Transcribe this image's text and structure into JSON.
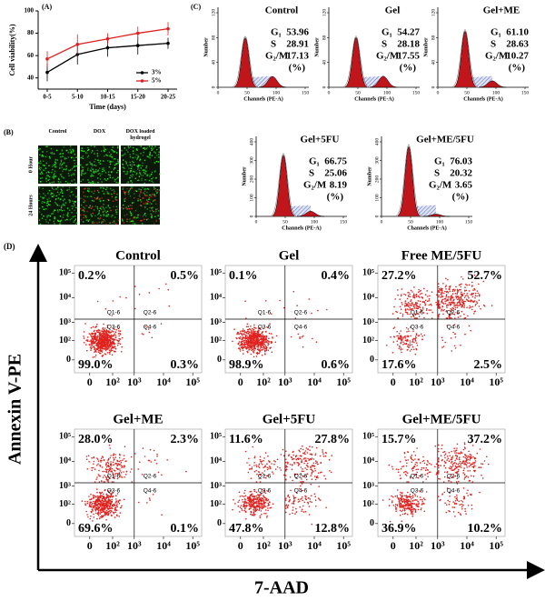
{
  "chart_data": {
    "type": "line",
    "title": "(A)",
    "x_label": "Time (days)",
    "y_label": "Cell viability(%)",
    "categories": [
      "0-5",
      "5-10",
      "10-15",
      "15-20",
      "20-25"
    ],
    "series": [
      {
        "name": "3%",
        "color": "#000000",
        "values": [
          45,
          61,
          67,
          69,
          71
        ],
        "errors": [
          8,
          9,
          8,
          8,
          5
        ]
      },
      {
        "name": "5%",
        "color": "#e02020",
        "values": [
          57,
          70,
          75,
          80,
          84
        ],
        "errors": [
          7,
          9,
          5,
          6,
          6
        ]
      }
    ],
    "ylim": [
      30,
      100
    ],
    "yticks": [
      40,
      60,
      80,
      100
    ]
  },
  "panel_b": {
    "label": "(B)",
    "columns": [
      "Control",
      "DOX",
      "DOX loaded hydrogel"
    ],
    "rows": [
      "0 Hour",
      "24 Hours"
    ]
  },
  "panel_c": {
    "label": "(C)",
    "y_label": "Number",
    "x_label": "Channels (PE-A)",
    "x_ticks": [
      "0",
      "50",
      "100",
      "150"
    ],
    "g1_label": "G₁",
    "s_label": "S",
    "g2m_label": "G₂/M",
    "unit_label": "(%)",
    "plots": [
      {
        "title": "Control",
        "y_ticks": [
          "0",
          "40",
          "80",
          "120"
        ],
        "g1": "53.96",
        "s": "28.91",
        "g2m": "17.13"
      },
      {
        "title": "Gel",
        "y_ticks": [
          "0",
          "40",
          "80",
          "120"
        ],
        "g1": "54.27",
        "s": "28.18",
        "g2m": "17.55"
      },
      {
        "title": "Gel+ME",
        "y_ticks": [
          "0",
          "40",
          "80",
          "120"
        ],
        "g1": "61.10",
        "s": "28.63",
        "g2m": "10.27"
      },
      {
        "title": "Gel+5FU",
        "y_ticks": [
          "0",
          "100",
          "200",
          "300",
          "400"
        ],
        "g1": "66.75",
        "s": "25.06",
        "g2m": "8.19"
      },
      {
        "title": "Gel+ME/5FU",
        "y_ticks": [
          "0",
          "100",
          "200",
          "300",
          "400"
        ],
        "g1": "76.03",
        "s": "20.32",
        "g2m": "3.65"
      }
    ]
  },
  "panel_d": {
    "label": "(D)",
    "y_label": "Annexin V-PE",
    "x_label": "7-AAD",
    "ticks": [
      "0",
      "10²",
      "10³",
      "10⁴",
      "10⁵"
    ],
    "gates": [
      "Q1-6",
      "Q2-6",
      "Q3-6",
      "Q4-6"
    ],
    "plots": [
      {
        "title": "Control",
        "q1": "0.2%",
        "q2": "0.5%",
        "q3": "99.0%",
        "q4": "0.3%"
      },
      {
        "title": "Gel",
        "q1": "0.1%",
        "q2": "0.4%",
        "q3": "98.9%",
        "q4": "0.6%"
      },
      {
        "title": "Free ME/5FU",
        "q1": "27.2%",
        "q2": "52.7%",
        "q3": "17.6%",
        "q4": "2.5%"
      },
      {
        "title": "Gel+ME",
        "q1": "28.0%",
        "q2": "2.3%",
        "q3": "69.6%",
        "q4": "0.1%"
      },
      {
        "title": "Gel+5FU",
        "q1": "11.6%",
        "q2": "27.8%",
        "q3": "47.8%",
        "q4": "12.8%"
      },
      {
        "title": "Gel+ME/5FU",
        "q1": "15.7%",
        "q2": "37.2%",
        "q3": "36.9%",
        "q4": "10.2%"
      }
    ]
  }
}
